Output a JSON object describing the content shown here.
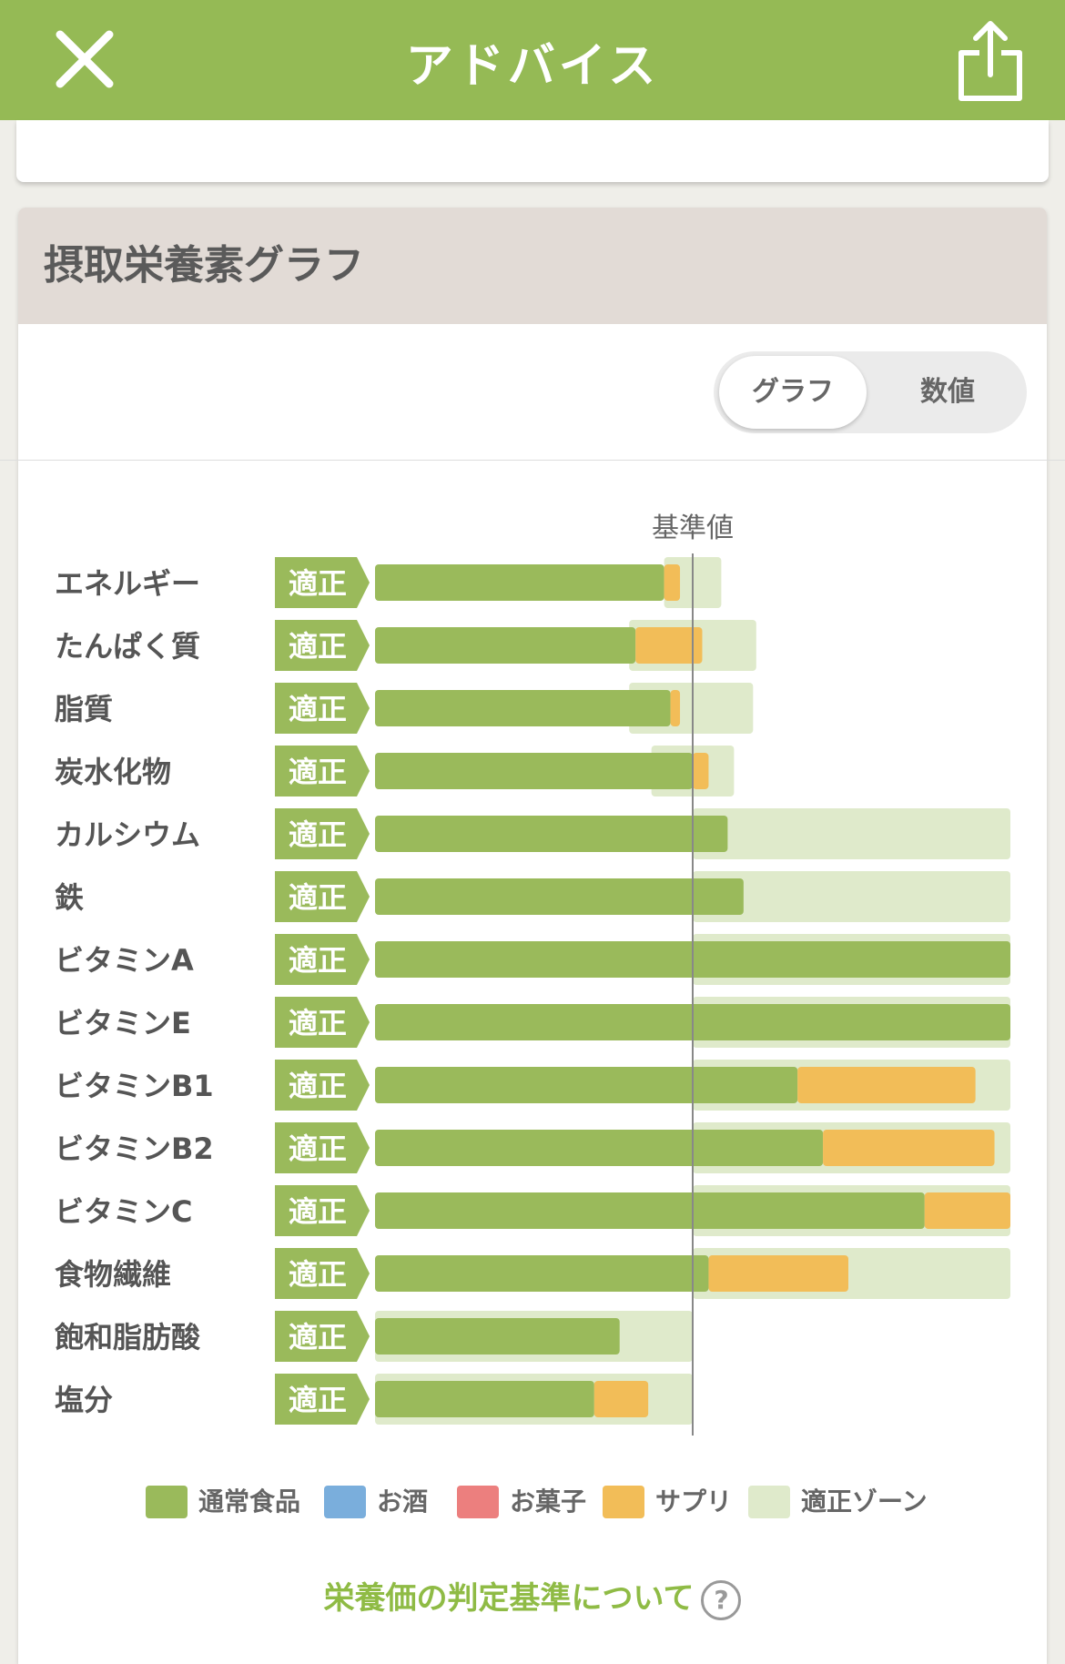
{
  "header": {
    "title": "アドバイス",
    "close_icon": "close-icon",
    "share_icon": "share-icon"
  },
  "section": {
    "title": "摂取栄養素グラフ"
  },
  "toggle": {
    "graph_label": "グラフ",
    "number_label": "数値",
    "selected": "グラフ"
  },
  "chart_data": {
    "type": "bar",
    "reference_label": "基準値",
    "categories": [
      "エネルギー",
      "たんぱく質",
      "脂質",
      "炭水化物",
      "カルシウム",
      "鉄",
      "ビタミンA",
      "ビタミンE",
      "ビタミンB1",
      "ビタミンB2",
      "ビタミンC",
      "食物繊維",
      "飽和脂肪酸",
      "塩分"
    ],
    "status": [
      "適正",
      "適正",
      "適正",
      "適正",
      "適正",
      "適正",
      "適正",
      "適正",
      "適正",
      "適正",
      "適正",
      "適正",
      "適正",
      "適正"
    ],
    "series": [
      {
        "name": "通常食品",
        "color": "#9aba5b",
        "values": [
          91,
          82,
          93,
          100,
          111,
          116,
          200,
          200,
          133,
          141,
          173,
          105,
          77,
          69
        ]
      },
      {
        "name": "お酒",
        "color": "#7aaedc",
        "values": [
          0,
          0,
          0,
          0,
          0,
          0,
          0,
          0,
          0,
          0,
          0,
          0,
          0,
          0
        ]
      },
      {
        "name": "お菓子",
        "color": "#ec7f7e",
        "values": [
          0,
          0,
          0,
          0,
          0,
          0,
          0,
          0,
          0,
          0,
          0,
          0,
          0,
          0
        ]
      },
      {
        "name": "サプリ",
        "color": "#f2bd58",
        "values": [
          5,
          21,
          3,
          5,
          0,
          0,
          0,
          0,
          56,
          54,
          27,
          44,
          0,
          17
        ]
      }
    ],
    "appropriate_zone": {
      "name": "適正ゾーン",
      "color": "#dfeacb",
      "ranges": [
        [
          91,
          109
        ],
        [
          80,
          120
        ],
        [
          80,
          119
        ],
        [
          87,
          113
        ],
        [
          100,
          200
        ],
        [
          100,
          200
        ],
        [
          100,
          200
        ],
        [
          100,
          200
        ],
        [
          100,
          200
        ],
        [
          100,
          200
        ],
        [
          100,
          200
        ],
        [
          100,
          200
        ],
        [
          0,
          100
        ],
        [
          0,
          100
        ]
      ]
    },
    "xlim": [
      0,
      200
    ],
    "reference_value": 100
  },
  "legend": [
    {
      "label": "通常食品",
      "color": "#9aba5b"
    },
    {
      "label": "お酒",
      "color": "#7aaedc"
    },
    {
      "label": "お菓子",
      "color": "#ec7f7e"
    },
    {
      "label": "サプリ",
      "color": "#f2bd58"
    },
    {
      "label": "適正ゾーン",
      "color": "#dfeacb"
    }
  ],
  "footer": {
    "link_label": "栄養価の判定基準について",
    "help_icon": "help-icon",
    "help_glyph": "?"
  }
}
